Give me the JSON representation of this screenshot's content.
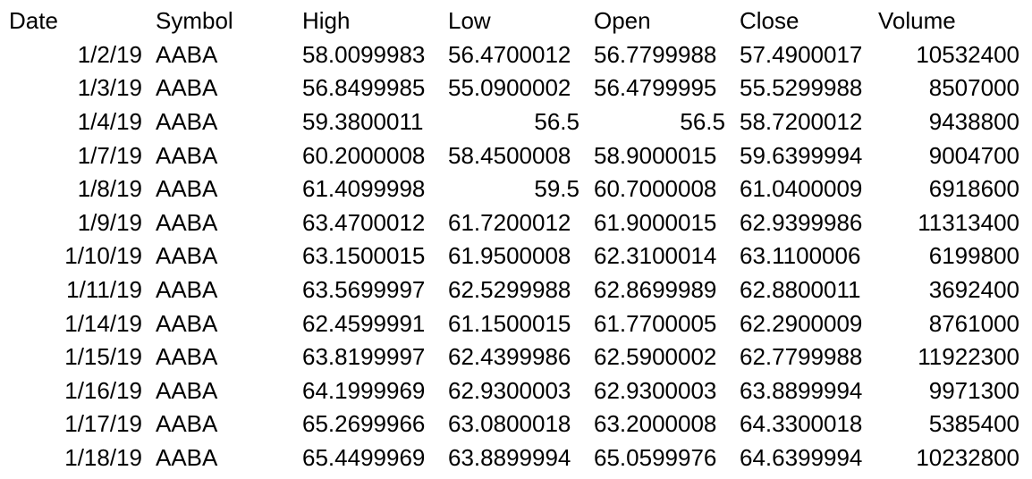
{
  "table": {
    "headers": [
      "Date",
      "Symbol",
      "High",
      "Low",
      "Open",
      "Close",
      "Volume"
    ],
    "rows": [
      [
        "1/2/19",
        "AABA",
        "58.0099983",
        "56.4700012",
        "56.7799988",
        "57.4900017",
        "10532400"
      ],
      [
        "1/3/19",
        "AABA",
        "56.8499985",
        "55.0900002",
        "56.4799995",
        "55.5299988",
        "8507000"
      ],
      [
        "1/4/19",
        "AABA",
        "59.3800011",
        "56.5",
        "56.5",
        "58.7200012",
        "9438800"
      ],
      [
        "1/7/19",
        "AABA",
        "60.2000008",
        "58.4500008",
        "58.9000015",
        "59.6399994",
        "9004700"
      ],
      [
        "1/8/19",
        "AABA",
        "61.4099998",
        "59.5",
        "60.7000008",
        "61.0400009",
        "6918600"
      ],
      [
        "1/9/19",
        "AABA",
        "63.4700012",
        "61.7200012",
        "61.9000015",
        "62.9399986",
        "11313400"
      ],
      [
        "1/10/19",
        "AABA",
        "63.1500015",
        "61.9500008",
        "62.3100014",
        "63.1100006",
        "6199800"
      ],
      [
        "1/11/19",
        "AABA",
        "63.5699997",
        "62.5299988",
        "62.8699989",
        "62.8800011",
        "3692400"
      ],
      [
        "1/14/19",
        "AABA",
        "62.4599991",
        "61.1500015",
        "61.7700005",
        "62.2900009",
        "8761000"
      ],
      [
        "1/15/19",
        "AABA",
        "63.8199997",
        "62.4399986",
        "62.5900002",
        "62.7799988",
        "11922300"
      ],
      [
        "1/16/19",
        "AABA",
        "64.1999969",
        "62.9300003",
        "62.9300003",
        "63.8899994",
        "9971300"
      ],
      [
        "1/17/19",
        "AABA",
        "65.2699966",
        "63.0800018",
        "63.2000008",
        "64.3300018",
        "5385400"
      ],
      [
        "1/18/19",
        "AABA",
        "65.4499969",
        "63.8899994",
        "65.0599976",
        "64.6399994",
        "10232800"
      ]
    ]
  }
}
